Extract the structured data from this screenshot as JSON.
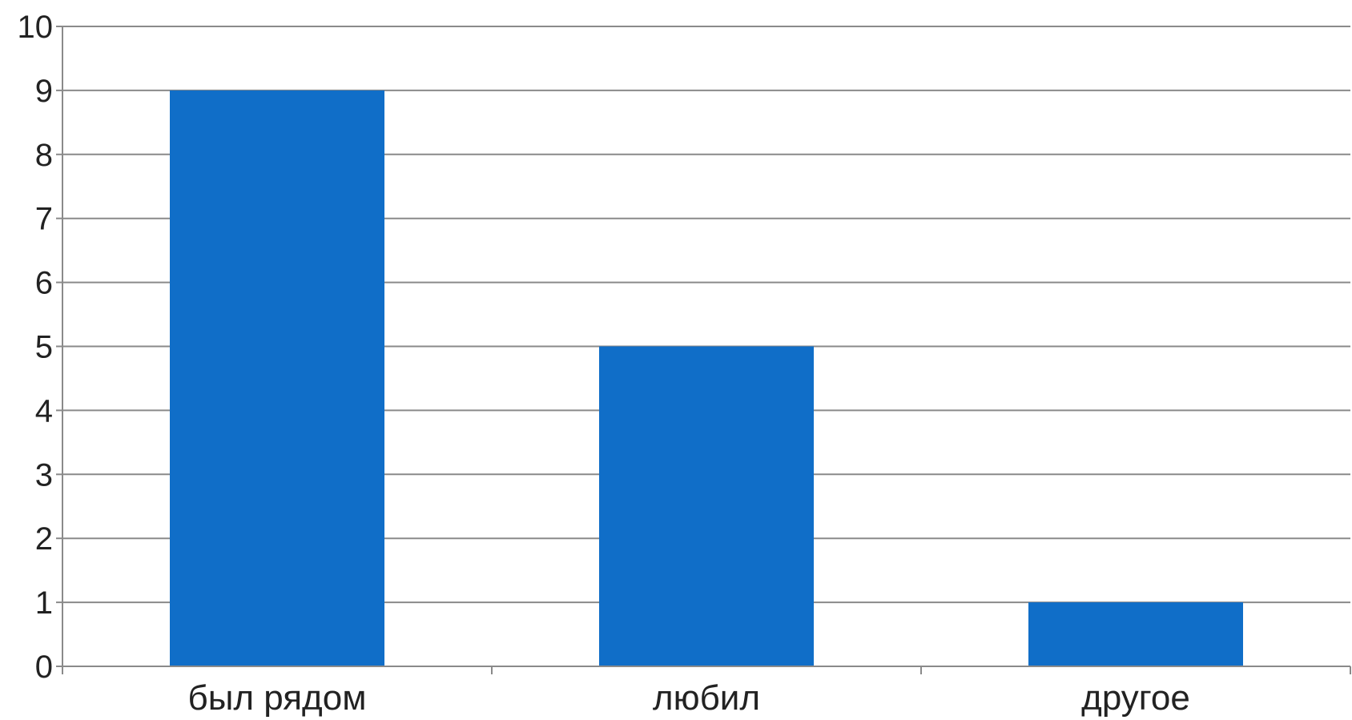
{
  "chart_data": {
    "type": "bar",
    "categories": [
      "был рядом",
      "любил",
      "другое"
    ],
    "values": [
      9,
      5,
      1
    ],
    "ylim": [
      0,
      10
    ],
    "yticks": [
      0,
      1,
      2,
      3,
      4,
      5,
      6,
      7,
      8,
      9,
      10
    ],
    "grid": true,
    "legend": "none",
    "bar_color": "#106ec8",
    "grid_color": "#8a8a8a",
    "axis_color": "#8a8a8a"
  }
}
